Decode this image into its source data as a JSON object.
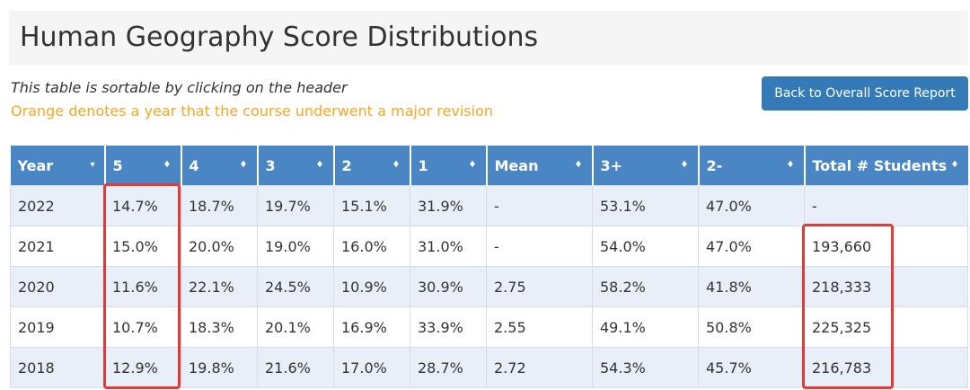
{
  "page": {
    "title": "Human Geography Score Distributions",
    "note_sortable": "This table is sortable by clicking on the header",
    "note_revision": "Orange denotes a year that the course underwent a major revision",
    "back_button_label": "Back to Overall Score Report"
  },
  "colors": {
    "header_bg": "#4b86c4",
    "button_bg": "#337ab7",
    "orange_note": "#f5a623",
    "highlight_red": "#e53935",
    "row_stripe": "#e9eff8"
  },
  "table": {
    "columns": [
      {
        "label": "Year",
        "sort_icon": "▾"
      },
      {
        "label": "5",
        "sort_icon": "♦"
      },
      {
        "label": "4",
        "sort_icon": "♦"
      },
      {
        "label": "3",
        "sort_icon": "♦"
      },
      {
        "label": "2",
        "sort_icon": "♦"
      },
      {
        "label": "1",
        "sort_icon": "♦"
      },
      {
        "label": "Mean",
        "sort_icon": "♦"
      },
      {
        "label": "3+",
        "sort_icon": "♦"
      },
      {
        "label": "2-",
        "sort_icon": "♦"
      },
      {
        "label": "Total # Students",
        "sort_icon": "♦"
      }
    ],
    "rows": [
      [
        "2022",
        "14.7%",
        "18.7%",
        "19.7%",
        "15.1%",
        "31.9%",
        "-",
        "53.1%",
        "47.0%",
        "-"
      ],
      [
        "2021",
        "15.0%",
        "20.0%",
        "19.0%",
        "16.0%",
        "31.0%",
        "-",
        "54.0%",
        "47.0%",
        "193,660"
      ],
      [
        "2020",
        "11.6%",
        "22.1%",
        "24.5%",
        "10.9%",
        "30.9%",
        "2.75",
        "58.2%",
        "41.8%",
        "218,333"
      ],
      [
        "2019",
        "10.7%",
        "18.3%",
        "20.1%",
        "16.9%",
        "33.9%",
        "2.55",
        "49.1%",
        "50.8%",
        "225,325"
      ],
      [
        "2018",
        "12.9%",
        "19.8%",
        "21.6%",
        "17.0%",
        "28.7%",
        "2.72",
        "54.3%",
        "45.7%",
        "216,783"
      ]
    ]
  }
}
